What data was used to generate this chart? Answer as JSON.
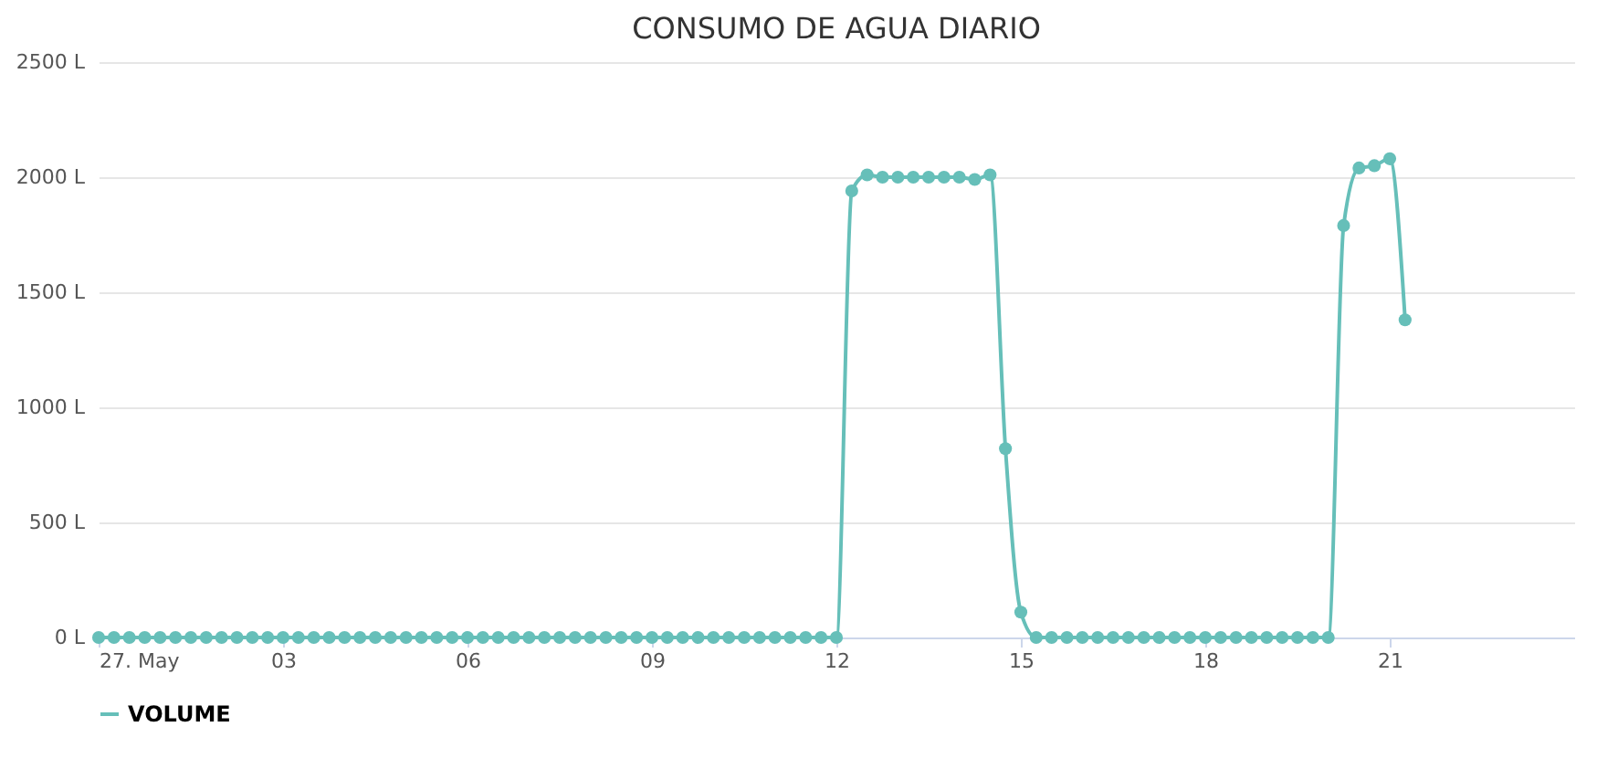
{
  "chart_data": {
    "type": "line",
    "title": "CONSUMO DE AGUA DIARIO",
    "x": [
      0,
      0.25,
      0.5,
      0.75,
      1,
      1.25,
      1.5,
      1.75,
      2,
      2.25,
      2.5,
      2.75,
      3,
      3.25,
      3.5,
      3.75,
      4,
      4.25,
      4.5,
      4.75,
      5,
      5.25,
      5.5,
      5.75,
      6,
      6.25,
      6.5,
      6.75,
      7,
      7.25,
      7.5,
      7.75,
      8,
      8.25,
      8.5,
      8.75,
      9,
      9.25,
      9.5,
      9.75,
      10,
      10.25,
      10.5,
      10.75,
      11,
      11.25,
      11.5,
      11.75,
      12,
      12.25,
      12.5,
      12.75,
      13,
      13.25,
      13.5,
      13.75,
      14,
      14.25,
      14.5,
      14.75,
      15,
      15.25,
      15.5,
      15.75,
      16,
      16.25,
      16.5,
      16.75,
      17,
      17.25,
      17.5,
      17.75,
      18,
      18.25,
      18.5,
      18.75,
      19,
      19.25,
      19.5,
      19.75,
      20,
      20.25,
      20.5,
      20.75,
      21,
      21.25
    ],
    "series": [
      {
        "name": "VOLUME",
        "color": "#66bfb9",
        "values": [
          0,
          0,
          0,
          0,
          0,
          0,
          0,
          0,
          0,
          0,
          0,
          0,
          0,
          0,
          0,
          0,
          0,
          0,
          0,
          0,
          0,
          0,
          0,
          0,
          0,
          0,
          0,
          0,
          0,
          0,
          0,
          0,
          0,
          0,
          0,
          0,
          0,
          0,
          0,
          0,
          0,
          0,
          0,
          0,
          0,
          0,
          0,
          0,
          0,
          1940,
          2010,
          2000,
          2000,
          2000,
          2000,
          2000,
          2000,
          1990,
          2010,
          820,
          110,
          0,
          0,
          0,
          0,
          0,
          0,
          0,
          0,
          0,
          0,
          0,
          0,
          0,
          0,
          0,
          0,
          0,
          0,
          0,
          0,
          1790,
          2040,
          2050,
          2080,
          1380
        ]
      }
    ],
    "xlim": [
      0,
      24
    ],
    "xticks": [
      {
        "value": 0,
        "label": "27. May"
      },
      {
        "value": 3,
        "label": "03"
      },
      {
        "value": 6,
        "label": "06"
      },
      {
        "value": 9,
        "label": "09"
      },
      {
        "value": 12,
        "label": "12"
      },
      {
        "value": 15,
        "label": "15"
      },
      {
        "value": 18,
        "label": "18"
      },
      {
        "value": 21,
        "label": "21"
      }
    ],
    "ylim": [
      0,
      2500
    ],
    "yticks": [
      {
        "value": 0,
        "label": "0 L"
      },
      {
        "value": 500,
        "label": "500 L"
      },
      {
        "value": 1000,
        "label": "1000 L"
      },
      {
        "value": 1500,
        "label": "1500 L"
      },
      {
        "value": 2000,
        "label": "2000 L"
      },
      {
        "value": 2500,
        "label": "2500 L"
      }
    ],
    "grid": "y",
    "legend": "bottom",
    "marker": "circle",
    "line_style": "solid"
  }
}
